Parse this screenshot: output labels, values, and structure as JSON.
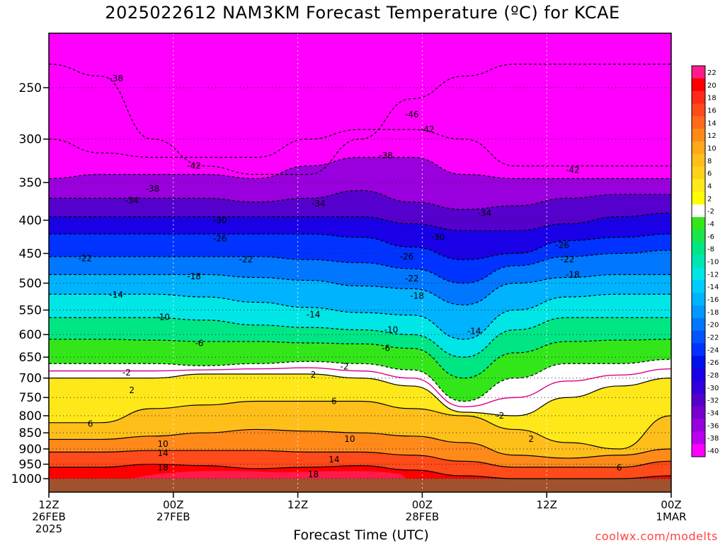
{
  "chart_data": {
    "type": "heatmap",
    "title": "2025022612 NAM3KM Forecast Temperature (ºC) for KCAE",
    "xlabel": "Forecast Time (UTC)",
    "ylabel": "",
    "credit": "coolwx.com/modelts",
    "y_scale": "log",
    "y_inverted": true,
    "ylim": [
      1000,
      200
    ],
    "y_ticks": [
      250,
      300,
      350,
      400,
      450,
      500,
      550,
      600,
      650,
      700,
      750,
      800,
      850,
      900,
      950,
      1000
    ],
    "x_ticks": [
      {
        "hour": 0,
        "lines": [
          "12Z",
          "26FEB",
          "2025"
        ]
      },
      {
        "hour": 12,
        "lines": [
          "00Z",
          "27FEB"
        ]
      },
      {
        "hour": 24,
        "lines": [
          "12Z"
        ]
      },
      {
        "hour": 36,
        "lines": [
          "00Z",
          "28FEB"
        ]
      },
      {
        "hour": 48,
        "lines": [
          "12Z"
        ]
      },
      {
        "hour": 60,
        "lines": [
          "00Z",
          "1MAR"
        ]
      }
    ],
    "grid": true,
    "colorbar": {
      "placement": "right",
      "levels": [
        22,
        20,
        18,
        16,
        14,
        12,
        10,
        8,
        6,
        4,
        2,
        -2,
        -4,
        -6,
        -8,
        -10,
        -12,
        -14,
        -16,
        -18,
        -20,
        -22,
        -24,
        -26,
        -28,
        -30,
        -32,
        -34,
        -36,
        -38,
        -40
      ],
      "colors": [
        "#ff1a8c",
        "#ff0000",
        "#ff2a1a",
        "#ff4a1a",
        "#ff6a1a",
        "#ff8a1a",
        "#ffa81a",
        "#ffbf1a",
        "#ffd21a",
        "#ffe81a",
        "#ffff00",
        "#ffffff",
        "#33e61a",
        "#19e64c",
        "#00e685",
        "#00e6b3",
        "#00e6e6",
        "#00ccff",
        "#00b3ff",
        "#0099ff",
        "#0077ff",
        "#0055ff",
        "#0033ff",
        "#0011ee",
        "#1a00e6",
        "#3300d9",
        "#5500cc",
        "#7700cc",
        "#9900dd",
        "#bb00ee",
        "#ff00ff"
      ]
    },
    "ground": {
      "color": "#a0522d",
      "below_hPa": 1000
    },
    "isotherm_profiles": [
      {
        "temp": -46,
        "p": [
          230,
          240,
          300,
          330,
          340,
          340,
          300,
          260,
          240,
          230,
          230,
          230,
          230
        ]
      },
      {
        "temp": -42,
        "p": [
          300,
          315,
          320,
          320,
          320,
          300,
          290,
          290,
          300,
          330,
          330,
          330,
          330
        ]
      },
      {
        "temp": -38,
        "p": [
          345,
          340,
          340,
          340,
          345,
          330,
          320,
          320,
          340,
          345,
          345,
          345,
          345
        ]
      },
      {
        "temp": -34,
        "p": [
          370,
          370,
          370,
          370,
          375,
          370,
          360,
          375,
          385,
          380,
          370,
          365,
          365
        ]
      },
      {
        "temp": -30,
        "p": [
          395,
          395,
          395,
          395,
          395,
          395,
          395,
          405,
          415,
          415,
          405,
          395,
          390
        ]
      },
      {
        "temp": -26,
        "p": [
          420,
          420,
          420,
          420,
          420,
          420,
          425,
          440,
          460,
          450,
          430,
          425,
          420
        ]
      },
      {
        "temp": -22,
        "p": [
          455,
          455,
          455,
          455,
          455,
          460,
          465,
          475,
          500,
          470,
          455,
          450,
          445
        ]
      },
      {
        "temp": -18,
        "p": [
          485,
          485,
          485,
          485,
          490,
          495,
          505,
          510,
          540,
          500,
          490,
          485,
          485
        ]
      },
      {
        "temp": -14,
        "p": [
          520,
          520,
          520,
          525,
          535,
          545,
          555,
          560,
          610,
          550,
          525,
          520,
          520
        ]
      },
      {
        "temp": -10,
        "p": [
          565,
          565,
          565,
          570,
          580,
          585,
          590,
          600,
          650,
          590,
          565,
          565,
          565
        ]
      },
      {
        "temp": -6,
        "p": [
          610,
          610,
          612,
          615,
          615,
          618,
          620,
          630,
          700,
          640,
          615,
          612,
          610
        ]
      },
      {
        "temp": -2,
        "p": [
          665,
          665,
          665,
          670,
          665,
          660,
          665,
          680,
          760,
          700,
          665,
          665,
          655
        ]
      },
      {
        "temp": 2,
        "p": [
          700,
          700,
          700,
          690,
          690,
          690,
          700,
          720,
          790,
          800,
          750,
          720,
          700
        ]
      },
      {
        "temp": 6,
        "p": [
          820,
          820,
          780,
          770,
          760,
          760,
          760,
          780,
          800,
          840,
          880,
          900,
          800
        ]
      },
      {
        "temp": 10,
        "p": [
          870,
          870,
          860,
          850,
          840,
          845,
          850,
          860,
          880,
          920,
          930,
          920,
          900
        ]
      },
      {
        "temp": 14,
        "p": [
          910,
          910,
          905,
          905,
          905,
          910,
          910,
          920,
          940,
          960,
          960,
          960,
          940
        ]
      },
      {
        "temp": 18,
        "p": [
          960,
          960,
          950,
          955,
          965,
          960,
          955,
          970,
          990,
          1000,
          1000,
          1000,
          990
        ]
      }
    ],
    "isotherm_hours": [
      0,
      5,
      10,
      15,
      20,
      25,
      30,
      35,
      40,
      45,
      50,
      55,
      60
    ],
    "contour_labels": [
      {
        "text": "-38",
        "hour": 6.5,
        "p": 242
      },
      {
        "text": "-46",
        "hour": 35,
        "p": 275
      },
      {
        "text": "-42",
        "hour": 36.5,
        "p": 290
      },
      {
        "text": "-38",
        "hour": 32.5,
        "p": 318
      },
      {
        "text": "-42",
        "hour": 14,
        "p": 330
      },
      {
        "text": "-42",
        "hour": 50.5,
        "p": 335
      },
      {
        "text": "-38",
        "hour": 10,
        "p": 358
      },
      {
        "text": "-34",
        "hour": 8,
        "p": 373
      },
      {
        "text": "-34",
        "hour": 26,
        "p": 377
      },
      {
        "text": "-34",
        "hour": 42,
        "p": 390
      },
      {
        "text": "-30",
        "hour": 16.5,
        "p": 400
      },
      {
        "text": "-30",
        "hour": 37.5,
        "p": 425
      },
      {
        "text": "-26",
        "hour": 16.5,
        "p": 427
      },
      {
        "text": "-26",
        "hour": 49.5,
        "p": 437
      },
      {
        "text": "-22",
        "hour": 3.5,
        "p": 458
      },
      {
        "text": "-22",
        "hour": 19,
        "p": 460
      },
      {
        "text": "-22",
        "hour": 50,
        "p": 460
      },
      {
        "text": "-26",
        "hour": 34.5,
        "p": 455
      },
      {
        "text": "-18",
        "hour": 14,
        "p": 488
      },
      {
        "text": "-18",
        "hour": 50.5,
        "p": 485
      },
      {
        "text": "-22",
        "hour": 35,
        "p": 492
      },
      {
        "text": "-14",
        "hour": 6.5,
        "p": 521
      },
      {
        "text": "-18",
        "hour": 35.5,
        "p": 523
      },
      {
        "text": "-14",
        "hour": 25.5,
        "p": 559
      },
      {
        "text": "-10",
        "hour": 11,
        "p": 564
      },
      {
        "text": "-10",
        "hour": 33,
        "p": 590
      },
      {
        "text": "-14",
        "hour": 41,
        "p": 593
      },
      {
        "text": "-6",
        "hour": 14.5,
        "p": 619
      },
      {
        "text": "-6",
        "hour": 32.5,
        "p": 630
      },
      {
        "text": "-2",
        "hour": 28.5,
        "p": 672
      },
      {
        "text": "-2",
        "hour": 7.5,
        "p": 687
      },
      {
        "text": "2",
        "hour": 25.5,
        "p": 692
      },
      {
        "text": "2",
        "hour": 8,
        "p": 731
      },
      {
        "text": "6",
        "hour": 27.5,
        "p": 760
      },
      {
        "text": "-2",
        "hour": 43.5,
        "p": 800
      },
      {
        "text": "6",
        "hour": 4,
        "p": 823
      },
      {
        "text": "2",
        "hour": 46.5,
        "p": 869
      },
      {
        "text": "10",
        "hour": 11,
        "p": 884
      },
      {
        "text": "10",
        "hour": 29,
        "p": 869
      },
      {
        "text": "14",
        "hour": 11,
        "p": 914
      },
      {
        "text": "14",
        "hour": 27.5,
        "p": 934
      },
      {
        "text": "18",
        "hour": 11,
        "p": 962
      },
      {
        "text": "18",
        "hour": 25.5,
        "p": 985
      },
      {
        "text": "6",
        "hour": 55,
        "p": 962
      }
    ]
  }
}
